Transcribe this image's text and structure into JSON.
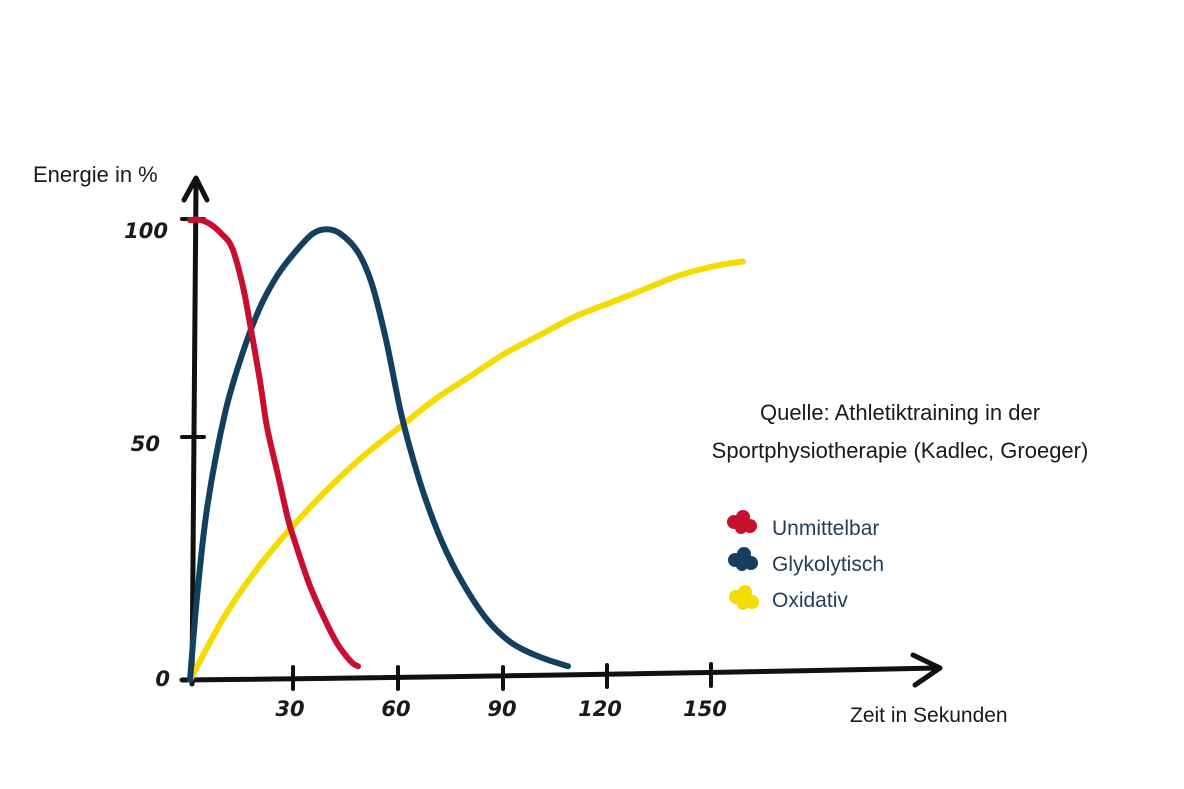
{
  "chart_data": {
    "type": "line",
    "ylabel": "Energie in %",
    "xlabel": "Zeit in Sekunden",
    "y_ticks": [
      "0",
      "50",
      "100"
    ],
    "x_ticks": [
      "30",
      "60",
      "90",
      "120",
      "150"
    ],
    "xlim": [
      0,
      210
    ],
    "ylim": [
      0,
      100
    ],
    "source_line1": "Quelle: Athletiktraining in der",
    "source_line2": "Sportphysiotherapie (Kadlec, Groeger)",
    "legend_placement": "right",
    "grid": false,
    "series": [
      {
        "name": "Unmittelbar",
        "color": "#c8102e",
        "points": [
          [
            0,
            100
          ],
          [
            3,
            100
          ],
          [
            6,
            99
          ],
          [
            9,
            97
          ],
          [
            12,
            94
          ],
          [
            15,
            86
          ],
          [
            17,
            78
          ],
          [
            20,
            65
          ],
          [
            22,
            55
          ],
          [
            25,
            45
          ],
          [
            28,
            35
          ],
          [
            30,
            30
          ],
          [
            34,
            21
          ],
          [
            38,
            14
          ],
          [
            42,
            8
          ],
          [
            46,
            4
          ],
          [
            48,
            3
          ]
        ]
      },
      {
        "name": "Glykolytisch",
        "color": "#13405f",
        "points": [
          [
            0,
            0
          ],
          [
            2,
            18
          ],
          [
            5,
            38
          ],
          [
            10,
            58
          ],
          [
            15,
            71
          ],
          [
            20,
            81
          ],
          [
            25,
            88
          ],
          [
            30,
            93
          ],
          [
            35,
            97
          ],
          [
            39,
            98
          ],
          [
            43,
            97
          ],
          [
            48,
            93
          ],
          [
            52,
            86
          ],
          [
            56,
            74
          ],
          [
            60,
            59
          ],
          [
            63,
            50
          ],
          [
            67,
            40
          ],
          [
            72,
            30
          ],
          [
            78,
            21
          ],
          [
            85,
            13
          ],
          [
            92,
            8
          ],
          [
            100,
            5
          ],
          [
            108,
            3
          ]
        ]
      },
      {
        "name": "Oxidativ",
        "color": "#f5dc00",
        "points": [
          [
            0,
            0
          ],
          [
            10,
            14
          ],
          [
            20,
            25
          ],
          [
            30,
            34
          ],
          [
            40,
            42
          ],
          [
            50,
            49
          ],
          [
            60,
            55
          ],
          [
            70,
            61
          ],
          [
            80,
            66
          ],
          [
            90,
            71
          ],
          [
            100,
            75
          ],
          [
            110,
            79
          ],
          [
            120,
            82
          ],
          [
            130,
            85
          ],
          [
            140,
            88
          ],
          [
            150,
            90
          ],
          [
            158,
            91
          ]
        ]
      }
    ]
  }
}
